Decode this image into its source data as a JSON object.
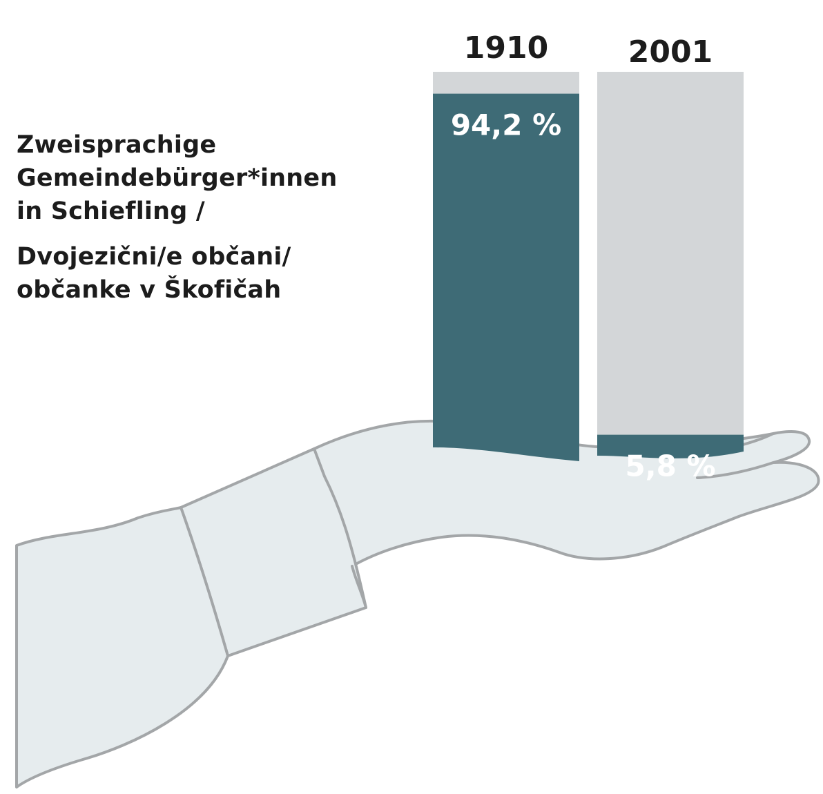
{
  "chart_data": {
    "type": "bar",
    "stacked": true,
    "categories": [
      "1910",
      "2001"
    ],
    "series": [
      {
        "values": [
          94.2,
          5.8
        ]
      }
    ],
    "data_labels": [
      "94,2 %",
      "5,8 %"
    ],
    "ylim": [
      0,
      100
    ],
    "grid": false,
    "title_lines": [
      "Zweisprachige",
      "Gemeindebürger*innen",
      "in Schiefling /",
      "Dvojezični/e občani/",
      "občanke v Škofičah"
    ]
  },
  "colors": {
    "share_fill": "#3e6b76",
    "remainder_fill": "#d3d6d8",
    "hand_fill": "#e6ecee",
    "hand_stroke": "#a3a6a8",
    "label_text": "#1c1c1c",
    "data_label_text": "#ffffff"
  }
}
